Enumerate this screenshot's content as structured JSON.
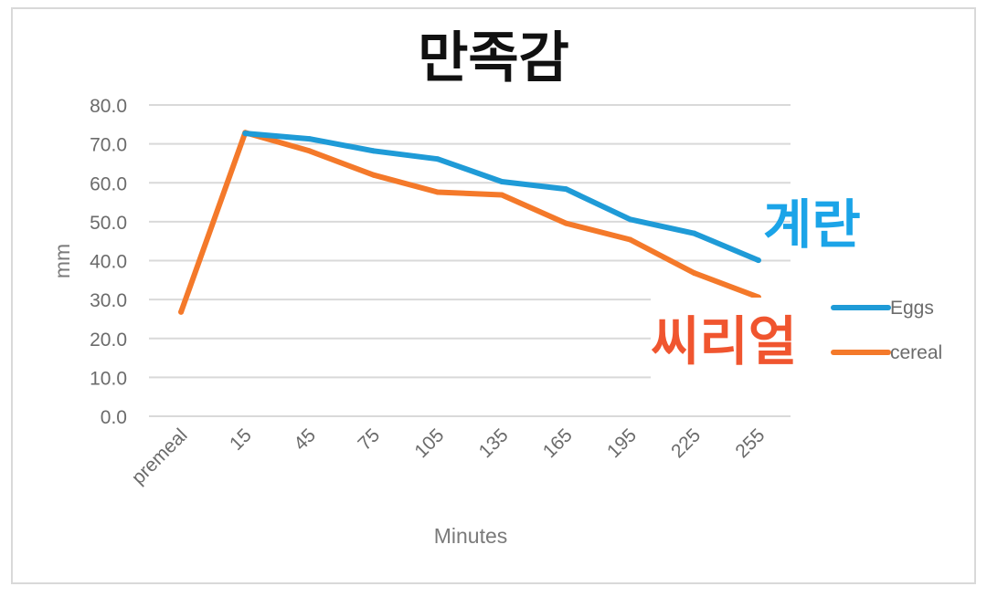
{
  "chart_data": {
    "type": "line",
    "title": "만족감",
    "xlabel": "Minutes",
    "ylabel": "mm",
    "categories": [
      "premeal",
      "15",
      "45",
      "75",
      "105",
      "135",
      "165",
      "195",
      "225",
      "255"
    ],
    "y_tick_labels": [
      "0.0",
      "10.0",
      "20.0",
      "30.0",
      "40.0",
      "50.0",
      "60.0",
      "70.0",
      "80.0"
    ],
    "ylim": [
      0,
      80
    ],
    "grid": true,
    "legend_position": "right",
    "series": [
      {
        "name": "Eggs",
        "color": "#1f9bd7",
        "values": [
          null,
          72.7,
          71.3,
          68.2,
          66.1,
          60.3,
          58.4,
          50.6,
          47.0,
          40.1
        ]
      },
      {
        "name": "cereal",
        "color": "#f4792a",
        "values": [
          26.8,
          72.9,
          68.2,
          62.0,
          57.6,
          56.9,
          49.6,
          45.4,
          36.8,
          30.6
        ]
      }
    ],
    "annotations": [
      {
        "text": "계란",
        "color": "#1ba4e8",
        "series": "Eggs"
      },
      {
        "text": "씨리얼",
        "color": "#f0552f",
        "series": "cereal"
      }
    ]
  }
}
